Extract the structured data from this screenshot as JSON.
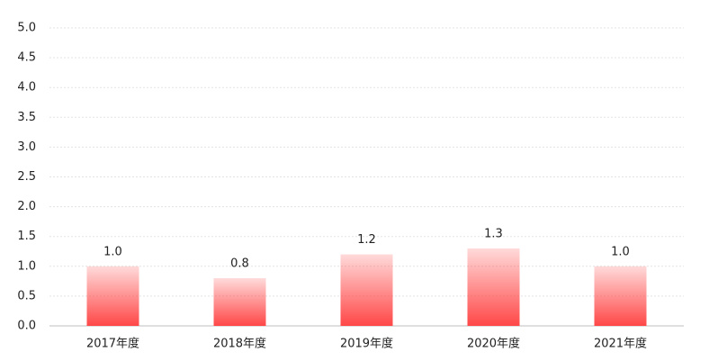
{
  "chart_data": {
    "type": "bar",
    "categories": [
      "2017年度",
      "2018年度",
      "2019年度",
      "2020年度",
      "2021年度"
    ],
    "values": [
      1.0,
      0.8,
      1.2,
      1.3,
      1.0
    ],
    "value_labels": [
      "1.0",
      "0.8",
      "1.2",
      "1.3",
      "1.0"
    ],
    "color": "#ff4747",
    "ylim": [
      0,
      5
    ],
    "yticks": [
      {
        "value": 0,
        "label": "0.0"
      },
      0.5,
      {
        "value": 1,
        "label": "1.0"
      },
      1.5,
      {
        "value": 2,
        "label": "2.0"
      },
      2.5,
      {
        "value": 3,
        "label": "3.0"
      },
      3.5,
      {
        "value": 4,
        "label": "4.0"
      },
      4.5,
      {
        "value": 5,
        "label": "5.0"
      }
    ],
    "grid": true
  }
}
